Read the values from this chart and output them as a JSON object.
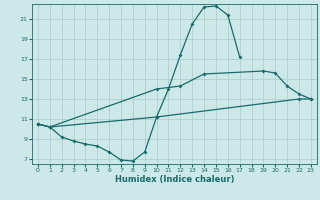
{
  "xlabel": "Humidex (Indice chaleur)",
  "bg_color": "#cce8e8",
  "line_color": "#1a6b6b",
  "grid_color": "#aacccc",
  "xlim": [
    -0.5,
    23.5
  ],
  "ylim": [
    6.5,
    22.5
  ],
  "xticks": [
    0,
    1,
    2,
    3,
    4,
    5,
    6,
    7,
    8,
    9,
    10,
    11,
    12,
    13,
    14,
    15,
    16,
    17,
    18,
    19,
    20,
    21,
    22,
    23
  ],
  "yticks": [
    7,
    9,
    11,
    13,
    15,
    17,
    19,
    21
  ],
  "line1_x": [
    0,
    1,
    2,
    3,
    4,
    5,
    6,
    7,
    8,
    9,
    10,
    11,
    12,
    13,
    14,
    15,
    16,
    17
  ],
  "line1_y": [
    10.5,
    10.2,
    9.2,
    8.8,
    8.5,
    8.3,
    7.7,
    6.9,
    6.8,
    7.7,
    11.2,
    14.0,
    17.4,
    20.5,
    22.2,
    22.3,
    21.4,
    17.2
  ],
  "line2_x": [
    0,
    1,
    10,
    12,
    14,
    19,
    20,
    21,
    22,
    23
  ],
  "line2_y": [
    10.5,
    10.2,
    14.0,
    14.3,
    15.5,
    15.8,
    15.6,
    14.3,
    13.5,
    13.0
  ],
  "line3_x": [
    0,
    1,
    10,
    22,
    23
  ],
  "line3_y": [
    10.5,
    10.2,
    11.2,
    13.0,
    13.0
  ]
}
